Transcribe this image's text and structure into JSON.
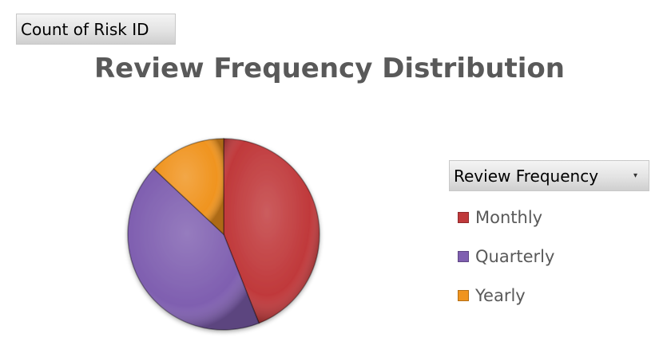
{
  "pivot": {
    "value_field_label": "Count of Risk ID",
    "legend_field_label": "Review Frequency",
    "legend_dropdown_glyph": "▾"
  },
  "chart_data": {
    "type": "pie",
    "title": "Review Frequency Distribution",
    "categories": [
      "Monthly",
      "Quarterly",
      "Yearly"
    ],
    "values": [
      44,
      43,
      13
    ],
    "colors": [
      "#c0393b",
      "#7f5fb0",
      "#f0941f"
    ],
    "legend_position": "right",
    "style": "3d-bevel"
  }
}
